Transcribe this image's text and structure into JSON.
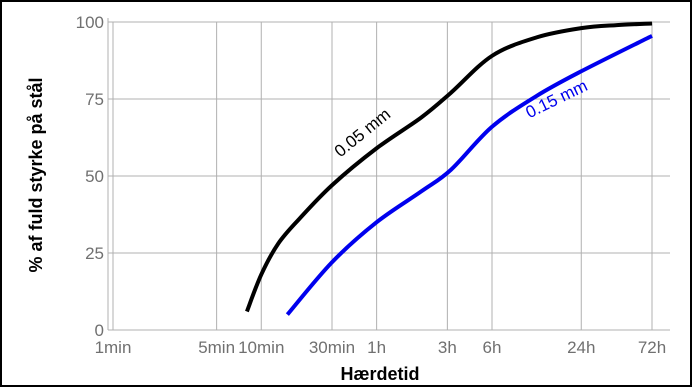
{
  "chart_data": {
    "type": "line",
    "title": "",
    "xlabel": "Hærdetid",
    "ylabel": "% af fuld styrke på stål",
    "x_scale": "log",
    "x_unit": "minutes",
    "x_ticks": [
      {
        "value": 1,
        "label": "1min"
      },
      {
        "value": 5,
        "label": "5min"
      },
      {
        "value": 10,
        "label": "10min"
      },
      {
        "value": 30,
        "label": "30min"
      },
      {
        "value": 60,
        "label": "1h"
      },
      {
        "value": 180,
        "label": "3h"
      },
      {
        "value": 360,
        "label": "6h"
      },
      {
        "value": 1440,
        "label": "24h"
      },
      {
        "value": 4320,
        "label": "72h"
      }
    ],
    "xlim": [
      1,
      4320
    ],
    "ylim": [
      0,
      100
    ],
    "y_ticks": [
      0,
      25,
      50,
      75,
      100
    ],
    "grid": true,
    "legend": "none",
    "series": [
      {
        "name": "0.05 mm",
        "color": "#000000",
        "label_rotation": -39,
        "x": [
          8,
          10,
          13,
          18,
          30,
          60,
          120,
          190,
          360,
          720,
          1440,
          2500,
          4320
        ],
        "y": [
          6,
          18,
          28,
          36,
          47,
          59,
          69,
          77,
          89,
          95,
          98,
          99,
          99.5
        ]
      },
      {
        "name": "0.15 mm",
        "color": "#0000ee",
        "label_rotation": -26,
        "x": [
          15,
          30,
          60,
          120,
          190,
          360,
          720,
          1440,
          4320
        ],
        "y": [
          5,
          22,
          35,
          45,
          52,
          66,
          76,
          84,
          95.5
        ]
      }
    ]
  }
}
